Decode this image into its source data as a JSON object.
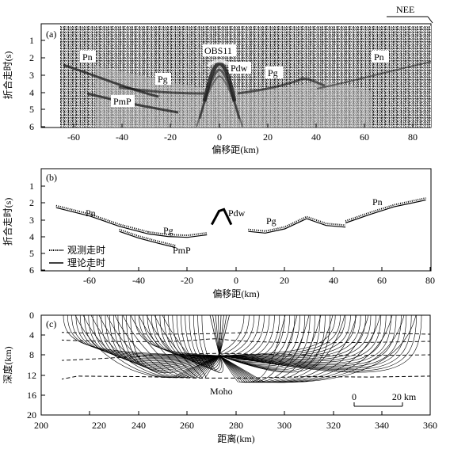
{
  "direction_label": "NEE",
  "panel_a": {
    "label": "(a)",
    "ylabel": "折合走时(s)",
    "xlabel": "偏移距(km)",
    "yticks": [
      "1",
      "2",
      "3",
      "4",
      "5",
      "6"
    ],
    "xticks": [
      "-60",
      "-40",
      "-20",
      "0",
      "20",
      "40",
      "60",
      "80"
    ],
    "annotations": {
      "pn_left": "Pn",
      "pg_left": "Pg",
      "pmp": "PmP",
      "obs": "OBS11",
      "pdw": "Pdw",
      "pg_right": "Pg",
      "pn_right": "Pn"
    }
  },
  "panel_b": {
    "label": "(b)",
    "ylabel": "折合走时(s)",
    "xlabel": "偏移距(km)",
    "yticks": [
      "1",
      "2",
      "3",
      "4",
      "5",
      "6"
    ],
    "xticks": [
      "-60",
      "-40",
      "-20",
      "0",
      "20",
      "40",
      "60",
      "80"
    ],
    "annotations": {
      "pn_left": "Pn",
      "pg_left": "Pg",
      "pmp": "PmP",
      "pdw": "Pdw",
      "pg_right": "Pg",
      "pn_right": "Pn"
    },
    "legend": {
      "observed": "观测走时",
      "theoretical": "理论走时"
    }
  },
  "panel_c": {
    "label": "(c)",
    "ylabel": "深度(km)",
    "xlabel": "距离(km)",
    "yticks": [
      "0",
      "4",
      "8",
      "12",
      "16",
      "20"
    ],
    "xticks": [
      "200",
      "220",
      "240",
      "260",
      "280",
      "300",
      "320",
      "340",
      "360"
    ],
    "moho_label": "Moho",
    "scale_start": "0",
    "scale_end": "20 km"
  },
  "chart_data": [
    {
      "type": "seismic-section",
      "xlim": [
        -66,
        86
      ],
      "ylim": [
        0,
        6
      ],
      "phases": [
        {
          "name": "Pn",
          "x": [
            -66,
            -50,
            -36
          ],
          "y": [
            2.6,
            3.2,
            3.6
          ]
        },
        {
          "name": "PmP",
          "x": [
            -50,
            -36,
            -25
          ],
          "y": [
            4.0,
            4.3,
            4.55
          ]
        },
        {
          "name": "Pg",
          "x": [
            -36,
            -20,
            -6
          ],
          "y": [
            3.3,
            3.65,
            3.75
          ]
        },
        {
          "name": "Pdw",
          "x": [
            -6,
            0,
            6
          ],
          "y": [
            3.4,
            2.3,
            3.4
          ]
        },
        {
          "name": "Pg",
          "x": [
            6,
            20,
            28,
            36,
            45
          ],
          "y": [
            3.8,
            3.4,
            3.0,
            3.3,
            3.6
          ]
        },
        {
          "name": "Pn",
          "x": [
            45,
            60,
            86
          ],
          "y": [
            3.2,
            2.7,
            1.9
          ]
        }
      ]
    },
    {
      "type": "line",
      "xlim": [
        -80,
        80
      ],
      "ylim": [
        0,
        6
      ],
      "series": [
        {
          "name": "Pn",
          "x": [
            -74,
            -60,
            -48,
            -36
          ],
          "y": [
            2.3,
            2.8,
            3.4,
            3.85
          ]
        },
        {
          "name": "Pg",
          "x": [
            -36,
            -28,
            -20,
            -12
          ],
          "y": [
            3.85,
            4.0,
            4.05,
            3.9
          ]
        },
        {
          "name": "PmP",
          "x": [
            -48,
            -40,
            -32,
            -25
          ],
          "y": [
            3.7,
            4.1,
            4.4,
            4.65
          ]
        },
        {
          "name": "Pdw",
          "x": [
            -10,
            -7,
            -5,
            -2
          ],
          "y": [
            3.3,
            2.5,
            2.4,
            3.3
          ]
        },
        {
          "name": "Pg",
          "x": [
            5,
            12,
            20,
            29,
            37,
            45
          ],
          "y": [
            3.7,
            3.8,
            3.55,
            2.95,
            3.35,
            3.45
          ]
        },
        {
          "name": "Pn",
          "x": [
            45,
            55,
            65,
            78
          ],
          "y": [
            3.2,
            2.7,
            2.25,
            1.85
          ]
        }
      ]
    },
    {
      "type": "line",
      "xlim": [
        200,
        360
      ],
      "ylim": [
        0,
        20
      ],
      "series": [
        {
          "name": "Moho",
          "x": [
            200,
            215,
            240,
            265,
            285,
            310,
            335,
            360
          ],
          "y": [
            13.6,
            12.2,
            12.3,
            12.6,
            12.6,
            12.3,
            12.4,
            12.2
          ]
        }
      ]
    }
  ]
}
